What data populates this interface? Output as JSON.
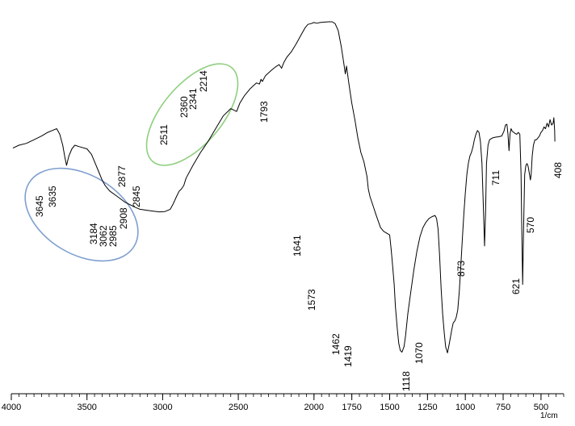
{
  "chart_data": {
    "type": "line",
    "title": "",
    "xlabel": "1/cm",
    "ylabel": "",
    "xlim": [
      4000,
      350
    ],
    "x_reversed": true,
    "x_ticks": [
      4000,
      3500,
      3000,
      2500,
      2000,
      1750,
      1500,
      1250,
      1000,
      750,
      500
    ],
    "x_tick_labels": [
      "4000",
      "3500",
      "3000",
      "2500",
      "2000",
      "1750",
      "1500",
      "1250",
      "1000",
      "750",
      "500"
    ],
    "minor_tick_step": 50,
    "grid": false,
    "series": [
      {
        "color": "#000000",
        "points": [
          [
            3990,
            0.622
          ],
          [
            3950,
            0.63
          ],
          [
            3900,
            0.635
          ],
          [
            3850,
            0.645
          ],
          [
            3800,
            0.655
          ],
          [
            3760,
            0.665
          ],
          [
            3730,
            0.67
          ],
          [
            3700,
            0.675
          ],
          [
            3680,
            0.66
          ],
          [
            3660,
            0.63
          ],
          [
            3645,
            0.595
          ],
          [
            3635,
            0.575
          ],
          [
            3620,
            0.6
          ],
          [
            3600,
            0.62
          ],
          [
            3580,
            0.63
          ],
          [
            3550,
            0.626
          ],
          [
            3500,
            0.62
          ],
          [
            3470,
            0.605
          ],
          [
            3450,
            0.585
          ],
          [
            3420,
            0.555
          ],
          [
            3400,
            0.535
          ],
          [
            3380,
            0.52
          ],
          [
            3350,
            0.505
          ],
          [
            3300,
            0.49
          ],
          [
            3250,
            0.475
          ],
          [
            3184,
            0.461
          ],
          [
            3150,
            0.455
          ],
          [
            3100,
            0.452
          ],
          [
            3062,
            0.45
          ],
          [
            3020,
            0.448
          ],
          [
            2985,
            0.449
          ],
          [
            2950,
            0.455
          ],
          [
            2930,
            0.47
          ],
          [
            2908,
            0.49
          ],
          [
            2890,
            0.505
          ],
          [
            2877,
            0.51
          ],
          [
            2860,
            0.52
          ],
          [
            2845,
            0.54
          ],
          [
            2800,
            0.575
          ],
          [
            2750,
            0.61
          ],
          [
            2700,
            0.64
          ],
          [
            2650,
            0.675
          ],
          [
            2600,
            0.71
          ],
          [
            2550,
            0.73
          ],
          [
            2511,
            0.722
          ],
          [
            2490,
            0.745
          ],
          [
            2460,
            0.765
          ],
          [
            2420,
            0.785
          ],
          [
            2380,
            0.8
          ],
          [
            2360,
            0.797
          ],
          [
            2350,
            0.81
          ],
          [
            2341,
            0.804
          ],
          [
            2320,
            0.82
          ],
          [
            2280,
            0.835
          ],
          [
            2250,
            0.845
          ],
          [
            2230,
            0.85
          ],
          [
            2214,
            0.84
          ],
          [
            2200,
            0.855
          ],
          [
            2180,
            0.87
          ],
          [
            2150,
            0.885
          ],
          [
            2120,
            0.905
          ],
          [
            2100,
            0.92
          ],
          [
            2080,
            0.935
          ],
          [
            2060,
            0.95
          ],
          [
            2040,
            0.96
          ],
          [
            2020,
            0.962
          ],
          [
            2000,
            0.965
          ],
          [
            1980,
            0.963
          ],
          [
            1960,
            0.965
          ],
          [
            1930,
            0.966
          ],
          [
            1900,
            0.967
          ],
          [
            1880,
            0.967
          ],
          [
            1860,
            0.962
          ],
          [
            1840,
            0.943
          ],
          [
            1820,
            0.9
          ],
          [
            1805,
            0.86
          ],
          [
            1793,
            0.825
          ],
          [
            1785,
            0.846
          ],
          [
            1770,
            0.8
          ],
          [
            1750,
            0.745
          ],
          [
            1730,
            0.7
          ],
          [
            1710,
            0.65
          ],
          [
            1690,
            0.61
          ],
          [
            1670,
            0.585
          ],
          [
            1660,
            0.565
          ],
          [
            1650,
            0.545
          ],
          [
            1641,
            0.51
          ],
          [
            1630,
            0.49
          ],
          [
            1610,
            0.465
          ],
          [
            1590,
            0.44
          ],
          [
            1573,
            0.42
          ],
          [
            1560,
            0.405
          ],
          [
            1540,
            0.395
          ],
          [
            1520,
            0.39
          ],
          [
            1500,
            0.385
          ],
          [
            1490,
            0.345
          ],
          [
            1480,
            0.3
          ],
          [
            1470,
            0.25
          ],
          [
            1462,
            0.19
          ],
          [
            1450,
            0.13
          ],
          [
            1440,
            0.09
          ],
          [
            1430,
            0.07
          ],
          [
            1419,
            0.065
          ],
          [
            1405,
            0.08
          ],
          [
            1395,
            0.11
          ],
          [
            1380,
            0.17
          ],
          [
            1360,
            0.23
          ],
          [
            1340,
            0.29
          ],
          [
            1320,
            0.34
          ],
          [
            1300,
            0.38
          ],
          [
            1280,
            0.405
          ],
          [
            1260,
            0.42
          ],
          [
            1240,
            0.43
          ],
          [
            1220,
            0.435
          ],
          [
            1200,
            0.438
          ],
          [
            1190,
            0.43
          ],
          [
            1180,
            0.4
          ],
          [
            1170,
            0.33
          ],
          [
            1160,
            0.24
          ],
          [
            1150,
            0.17
          ],
          [
            1140,
            0.12
          ],
          [
            1130,
            0.08
          ],
          [
            1118,
            0.063
          ],
          [
            1105,
            0.09
          ],
          [
            1090,
            0.125
          ],
          [
            1080,
            0.145
          ],
          [
            1070,
            0.15
          ],
          [
            1060,
            0.16
          ],
          [
            1050,
            0.18
          ],
          [
            1040,
            0.23
          ],
          [
            1030,
            0.3
          ],
          [
            1020,
            0.37
          ],
          [
            1010,
            0.44
          ],
          [
            1000,
            0.5
          ],
          [
            990,
            0.55
          ],
          [
            980,
            0.58
          ],
          [
            970,
            0.6
          ],
          [
            960,
            0.61
          ],
          [
            950,
            0.625
          ],
          [
            940,
            0.645
          ],
          [
            930,
            0.66
          ],
          [
            920,
            0.67
          ],
          [
            910,
            0.665
          ],
          [
            900,
            0.64
          ],
          [
            890,
            0.58
          ],
          [
            880,
            0.45
          ],
          [
            873,
            0.355
          ],
          [
            866,
            0.45
          ],
          [
            860,
            0.58
          ],
          [
            850,
            0.63
          ],
          [
            840,
            0.645
          ],
          [
            820,
            0.65
          ],
          [
            800,
            0.652
          ],
          [
            780,
            0.653
          ],
          [
            760,
            0.655
          ],
          [
            745,
            0.668
          ],
          [
            735,
            0.685
          ],
          [
            725,
            0.687
          ],
          [
            718,
            0.66
          ],
          [
            711,
            0.615
          ],
          [
            705,
            0.66
          ],
          [
            698,
            0.675
          ],
          [
            690,
            0.668
          ],
          [
            680,
            0.665
          ],
          [
            670,
            0.662
          ],
          [
            660,
            0.66
          ],
          [
            650,
            0.665
          ],
          [
            640,
            0.66
          ],
          [
            632,
            0.55
          ],
          [
            627,
            0.4
          ],
          [
            621,
            0.25
          ],
          [
            615,
            0.4
          ],
          [
            608,
            0.55
          ],
          [
            600,
            0.575
          ],
          [
            592,
            0.58
          ],
          [
            585,
            0.572
          ],
          [
            578,
            0.555
          ],
          [
            570,
            0.535
          ],
          [
            565,
            0.55
          ],
          [
            558,
            0.6
          ],
          [
            550,
            0.63
          ],
          [
            540,
            0.645
          ],
          [
            530,
            0.645
          ],
          [
            520,
            0.65
          ],
          [
            510,
            0.655
          ],
          [
            500,
            0.665
          ],
          [
            490,
            0.67
          ],
          [
            480,
            0.68
          ],
          [
            470,
            0.675
          ],
          [
            460,
            0.69
          ],
          [
            450,
            0.68
          ],
          [
            440,
            0.7
          ],
          [
            430,
            0.685
          ],
          [
            420,
            0.69
          ],
          [
            415,
            0.705
          ],
          [
            410,
            0.67
          ],
          [
            408,
            0.64
          ]
        ]
      }
    ],
    "peak_labels": [
      "3645",
      "3635",
      "3184",
      "3062",
      "2985",
      "2908",
      "2877",
      "2845",
      "2511",
      "2360",
      "2341",
      "2214",
      "1793",
      "1641",
      "1573",
      "1462",
      "1419",
      "1118",
      "1070",
      "873",
      "711",
      "621",
      "570",
      "408"
    ],
    "annotations": [
      {
        "shape": "ellipse",
        "color": "#7f9fcf"
      },
      {
        "shape": "ellipse",
        "color": "#8fcf7f"
      }
    ]
  }
}
